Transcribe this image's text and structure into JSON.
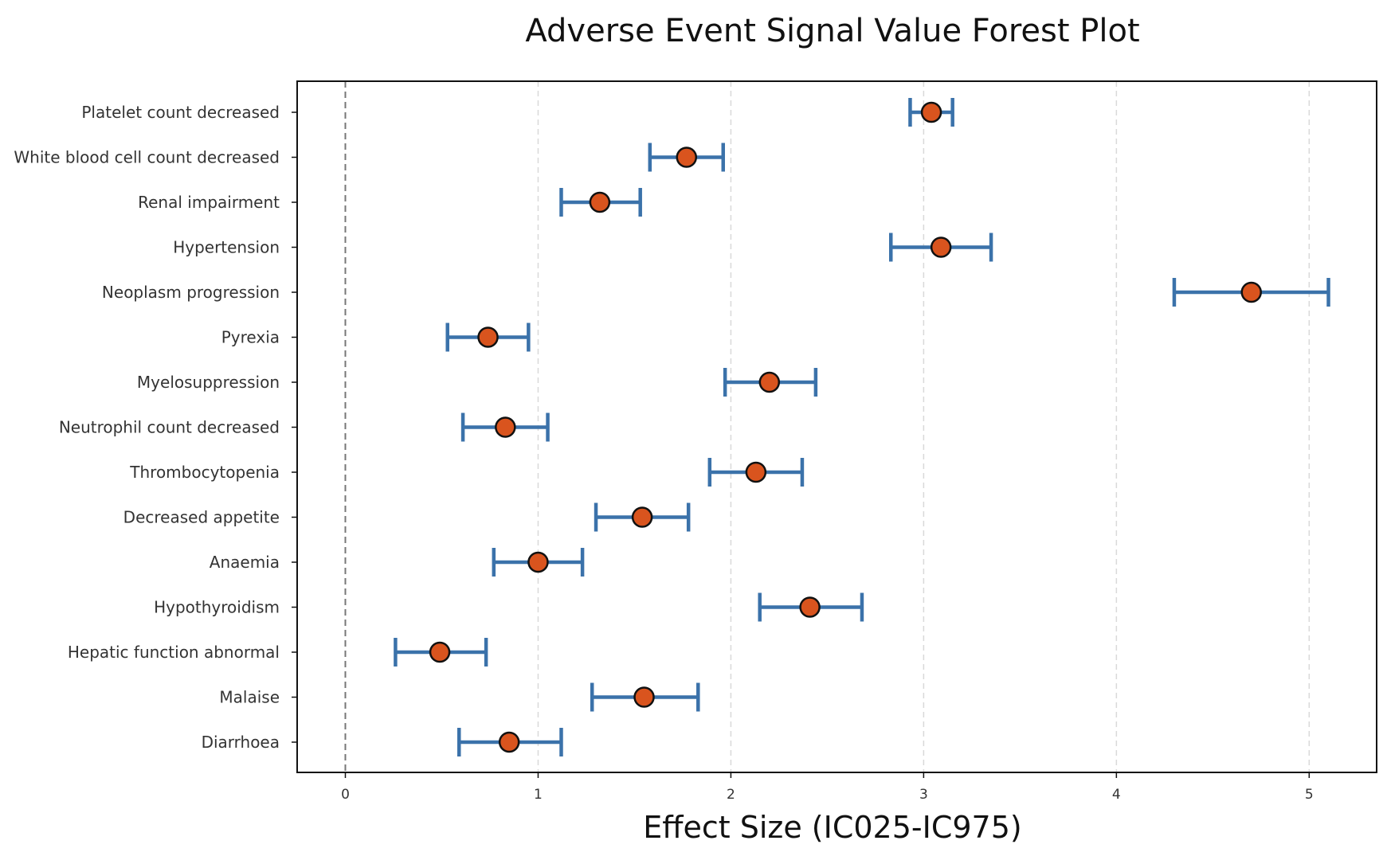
{
  "chart_data": {
    "type": "forest",
    "title": "Adverse Event Signal Value Forest Plot",
    "xlabel": "Effect Size (IC025-IC975)",
    "ylabel": "",
    "xlim": [
      -0.25,
      5.35
    ],
    "xticks": [
      0,
      1,
      2,
      3,
      4,
      5
    ],
    "reference_line": 0,
    "grid": "vertical dashed",
    "colors": {
      "ci": "#3b72aa",
      "point": "#d9541e",
      "point_edge": "#111111",
      "grid": "#d9d9d9",
      "reference": "#777777",
      "axis": "#111111"
    },
    "rows": [
      {
        "label": "Platelet count decreased",
        "estimate": 3.04,
        "lower": 2.93,
        "upper": 3.15
      },
      {
        "label": "White blood cell count decreased",
        "estimate": 1.77,
        "lower": 1.58,
        "upper": 1.96
      },
      {
        "label": "Renal impairment",
        "estimate": 1.32,
        "lower": 1.12,
        "upper": 1.53
      },
      {
        "label": "Hypertension",
        "estimate": 3.09,
        "lower": 2.83,
        "upper": 3.35
      },
      {
        "label": "Neoplasm progression",
        "estimate": 4.7,
        "lower": 4.3,
        "upper": 5.1
      },
      {
        "label": "Pyrexia",
        "estimate": 0.74,
        "lower": 0.53,
        "upper": 0.95
      },
      {
        "label": "Myelosuppression",
        "estimate": 2.2,
        "lower": 1.97,
        "upper": 2.44
      },
      {
        "label": "Neutrophil count decreased",
        "estimate": 0.83,
        "lower": 0.61,
        "upper": 1.05
      },
      {
        "label": "Thrombocytopenia",
        "estimate": 2.13,
        "lower": 1.89,
        "upper": 2.37
      },
      {
        "label": "Decreased appetite",
        "estimate": 1.54,
        "lower": 1.3,
        "upper": 1.78
      },
      {
        "label": "Anaemia",
        "estimate": 1.0,
        "lower": 0.77,
        "upper": 1.23
      },
      {
        "label": "Hypothyroidism",
        "estimate": 2.41,
        "lower": 2.15,
        "upper": 2.68
      },
      {
        "label": "Hepatic function abnormal",
        "estimate": 0.49,
        "lower": 0.26,
        "upper": 0.73
      },
      {
        "label": "Malaise",
        "estimate": 1.55,
        "lower": 1.28,
        "upper": 1.83
      },
      {
        "label": "Diarrhoea",
        "estimate": 0.85,
        "lower": 0.59,
        "upper": 1.12
      }
    ]
  }
}
